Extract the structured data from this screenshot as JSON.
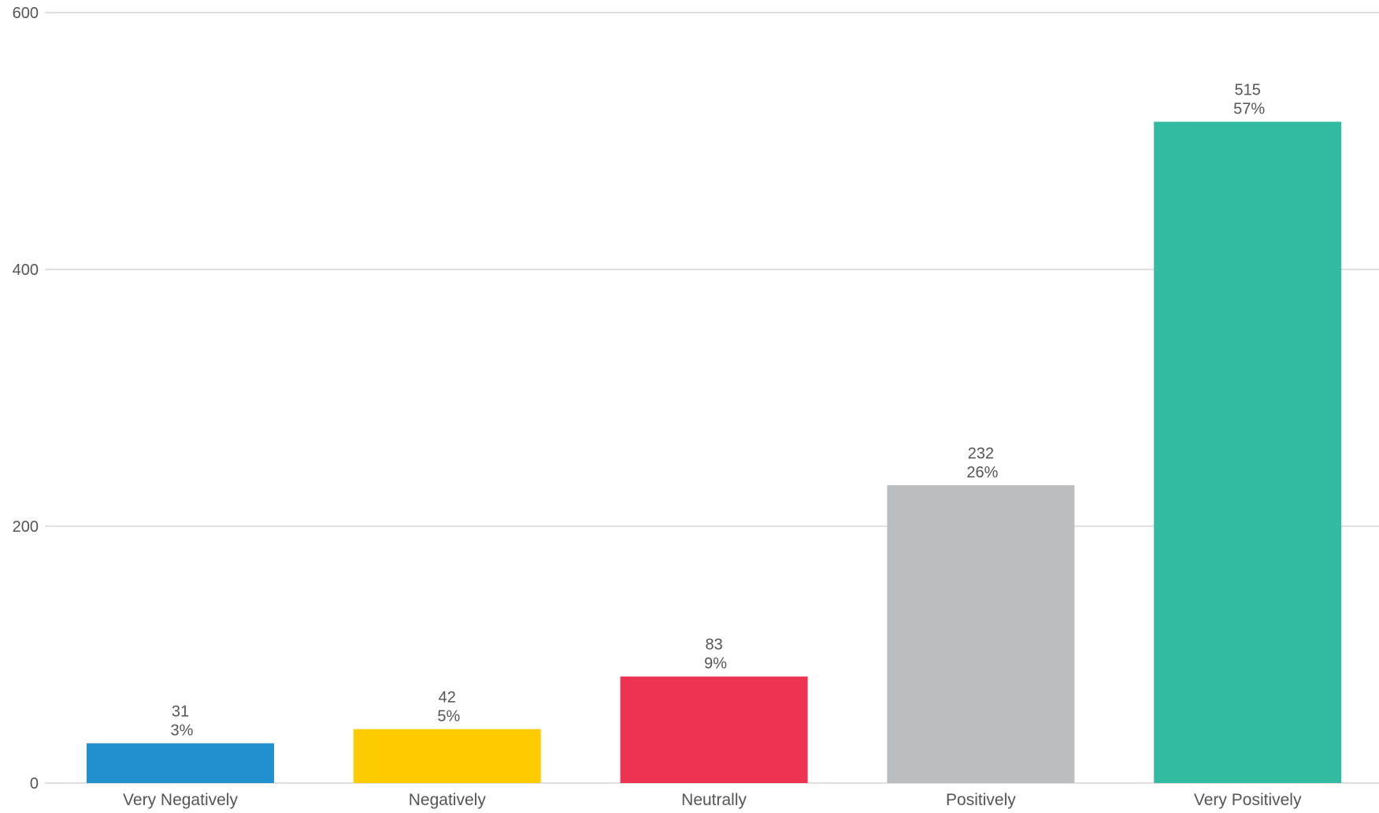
{
  "chart_data": {
    "type": "bar",
    "title": "",
    "xlabel": "",
    "ylabel": "",
    "categories": [
      "Very Negatively",
      "Negatively",
      "Neutrally",
      "Positively",
      "Very Positively"
    ],
    "values": [
      31,
      42,
      83,
      232,
      515
    ],
    "percent_labels": [
      "3%",
      "5%",
      "9%",
      "26%",
      "57%"
    ],
    "colors": [
      "#2291cf",
      "#ffcc00",
      "#ee3352",
      "#bcbdbf",
      "#33bba1"
    ],
    "ylim": [
      0,
      600
    ],
    "yticks": [
      0,
      200,
      400,
      600
    ],
    "grid": true,
    "legend": "none"
  }
}
